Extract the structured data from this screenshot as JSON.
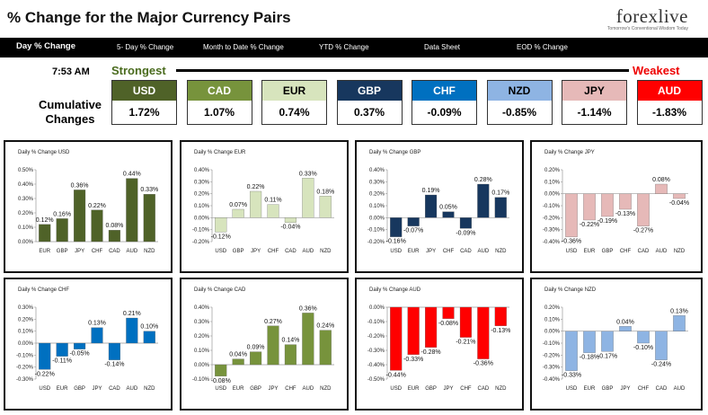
{
  "header": {
    "title": "% Change for the Major Currency Pairs",
    "logo": "forexlive",
    "logo_tagline": "Tomorrow's Conventional Wisdom Today"
  },
  "tabs": [
    {
      "label": "Day % Change",
      "active": true
    },
    {
      "label": "5- Day % Change",
      "active": false
    },
    {
      "label": "Month to Date % Change",
      "active": false
    },
    {
      "label": "YTD % Change",
      "active": false
    },
    {
      "label": "Data Sheet",
      "active": false
    },
    {
      "label": "EOD % Change",
      "active": false
    }
  ],
  "summary": {
    "time": "7:53 AM",
    "strongest": "Strongest",
    "weakest": "Weakest",
    "label": "Cumulative Changes",
    "currencies": [
      {
        "name": "USD",
        "value": "1.72%",
        "color": "#4f6228",
        "text": "#ffffff"
      },
      {
        "name": "CAD",
        "value": "1.07%",
        "color": "#77933c",
        "text": "#ffffff"
      },
      {
        "name": "EUR",
        "value": "0.74%",
        "color": "#d7e4bd",
        "text": "#000000"
      },
      {
        "name": "GBP",
        "value": "0.37%",
        "color": "#17375e",
        "text": "#ffffff"
      },
      {
        "name": "CHF",
        "value": "-0.09%",
        "color": "#0070c0",
        "text": "#ffffff"
      },
      {
        "name": "NZD",
        "value": "-0.85%",
        "color": "#8eb4e3",
        "text": "#000000"
      },
      {
        "name": "JPY",
        "value": "-1.14%",
        "color": "#e6b9b8",
        "text": "#000000"
      },
      {
        "name": "AUD",
        "value": "-1.83%",
        "color": "#ff0000",
        "text": "#ffffff"
      }
    ]
  },
  "chart_data": [
    {
      "type": "bar",
      "title": "Daily % Change USD",
      "categories": [
        "EUR",
        "GBP",
        "JPY",
        "CHF",
        "CAD",
        "AUD",
        "NZD"
      ],
      "values": [
        0.12,
        0.16,
        0.36,
        0.22,
        0.08,
        0.44,
        0.33
      ],
      "labels": [
        "0.12%",
        "0.16%",
        "0.36%",
        "0.22%",
        "0.08%",
        "0.44%",
        "0.33%"
      ],
      "yticks": [
        "0.50%",
        "0.40%",
        "0.30%",
        "0.20%",
        "0.10%",
        "0.00%"
      ],
      "ylim": [
        0,
        0.5
      ],
      "color": "#4f6228"
    },
    {
      "type": "bar",
      "title": "Daily % Change EUR",
      "categories": [
        "USD",
        "GBP",
        "JPY",
        "CHF",
        "CAD",
        "AUD",
        "NZD"
      ],
      "values": [
        -0.12,
        0.07,
        0.22,
        0.11,
        -0.04,
        0.33,
        0.18
      ],
      "labels": [
        "-0.12%",
        "0.07%",
        "0.22%",
        "0.11%",
        "-0.04%",
        "0.33%",
        "0.18%"
      ],
      "yticks": [
        "0.40%",
        "0.30%",
        "0.20%",
        "0.10%",
        "0.00%",
        "-0.10%",
        "-0.20%"
      ],
      "ylim": [
        -0.2,
        0.4
      ],
      "color": "#d7e4bd"
    },
    {
      "type": "bar",
      "title": "Daily % Change GBP",
      "categories": [
        "USD",
        "EUR",
        "JPY",
        "CHF",
        "CAD",
        "AUD",
        "NZD"
      ],
      "values": [
        -0.16,
        -0.07,
        0.19,
        0.05,
        -0.09,
        0.28,
        0.17
      ],
      "labels": [
        "-0.16%",
        "-0.07%",
        "0.19%",
        "0.05%",
        "-0.09%",
        "0.28%",
        "0.17%"
      ],
      "yticks": [
        "0.40%",
        "0.30%",
        "0.20%",
        "0.10%",
        "0.00%",
        "-0.10%",
        "-0.20%"
      ],
      "ylim": [
        -0.2,
        0.4
      ],
      "color": "#17375e"
    },
    {
      "type": "bar",
      "title": "Daily % Change JPY",
      "categories": [
        "USD",
        "EUR",
        "GBP",
        "CHF",
        "CAD",
        "AUD",
        "NZD"
      ],
      "values": [
        -0.36,
        -0.22,
        -0.19,
        -0.13,
        -0.27,
        0.08,
        -0.04
      ],
      "labels": [
        "-0.36%",
        "-0.22%",
        "-0.19%",
        "-0.13%",
        "-0.27%",
        "0.08%",
        "-0.04%"
      ],
      "yticks": [
        "0.20%",
        "0.10%",
        "0.00%",
        "-0.10%",
        "-0.20%",
        "-0.30%",
        "-0.40%"
      ],
      "ylim": [
        -0.4,
        0.2
      ],
      "color": "#e6b9b8"
    },
    {
      "type": "bar",
      "title": "Daily % Change CHF",
      "categories": [
        "USD",
        "EUR",
        "GBP",
        "JPY",
        "CAD",
        "AUD",
        "NZD"
      ],
      "values": [
        -0.22,
        -0.11,
        -0.05,
        0.13,
        -0.14,
        0.21,
        0.1
      ],
      "labels": [
        "-0.22%",
        "-0.11%",
        "-0.05%",
        "0.13%",
        "-0.14%",
        "0.21%",
        "0.10%"
      ],
      "yticks": [
        "0.30%",
        "0.20%",
        "0.10%",
        "0.00%",
        "-0.10%",
        "-0.20%",
        "-0.30%"
      ],
      "ylim": [
        -0.3,
        0.3
      ],
      "color": "#0070c0"
    },
    {
      "type": "bar",
      "title": "Daily % Change CAD",
      "categories": [
        "USD",
        "EUR",
        "GBP",
        "JPY",
        "CHF",
        "AUD",
        "NZD"
      ],
      "values": [
        -0.08,
        0.04,
        0.09,
        0.27,
        0.14,
        0.36,
        0.24
      ],
      "labels": [
        "-0.08%",
        "0.04%",
        "0.09%",
        "0.27%",
        "0.14%",
        "0.36%",
        "0.24%"
      ],
      "yticks": [
        "0.40%",
        "0.30%",
        "0.20%",
        "0.10%",
        "0.00%",
        "-0.10%"
      ],
      "ylim": [
        -0.1,
        0.4
      ],
      "color": "#77933c"
    },
    {
      "type": "bar",
      "title": "Daily % Change AUD",
      "categories": [
        "USD",
        "EUR",
        "GBP",
        "JPY",
        "CHF",
        "CAD",
        "NZD"
      ],
      "values": [
        -0.44,
        -0.33,
        -0.28,
        -0.08,
        -0.21,
        -0.36,
        -0.13
      ],
      "labels": [
        "-0.44%",
        "-0.33%",
        "-0.28%",
        "-0.08%",
        "-0.21%",
        "-0.36%",
        "-0.13%"
      ],
      "yticks": [
        "0.00%",
        "-0.10%",
        "-0.20%",
        "-0.30%",
        "-0.40%",
        "-0.50%"
      ],
      "ylim": [
        -0.5,
        0
      ],
      "color": "#ff0000"
    },
    {
      "type": "bar",
      "title": "Daily % Change NZD",
      "categories": [
        "USD",
        "EUR",
        "GBP",
        "JPY",
        "CHF",
        "CAD",
        "AUD"
      ],
      "values": [
        -0.33,
        -0.18,
        -0.17,
        0.04,
        -0.1,
        -0.24,
        0.13
      ],
      "labels": [
        "-0.33%",
        "-0.18%",
        "-0.17%",
        "0.04%",
        "-0.10%",
        "-0.24%",
        "0.13%"
      ],
      "yticks": [
        "0.20%",
        "0.10%",
        "0.00%",
        "-0.10%",
        "-0.20%",
        "-0.30%",
        "-0.40%"
      ],
      "ylim": [
        -0.4,
        0.2
      ],
      "color": "#8eb4e3"
    }
  ]
}
